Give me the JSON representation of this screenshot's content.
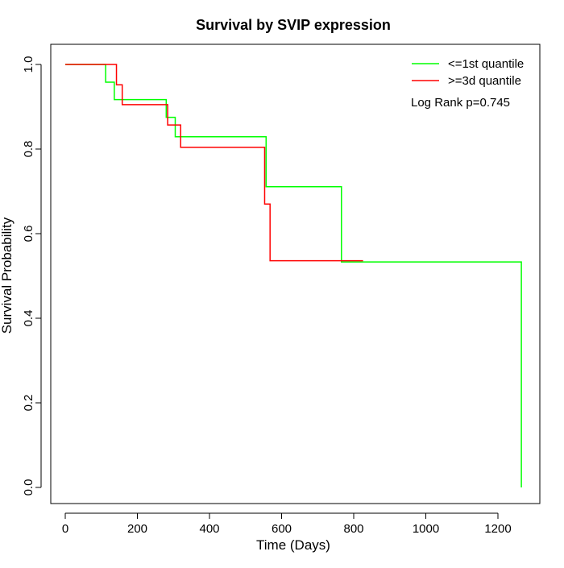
{
  "chart_data": {
    "type": "line",
    "step": true,
    "title": "Survival by SVIP expression",
    "xlabel": "Time (Days)",
    "ylabel": "Survival Probability",
    "xlim": [
      0,
      1265
    ],
    "ylim": [
      0,
      1
    ],
    "xticks": [
      0,
      200,
      400,
      600,
      800,
      1000,
      1200
    ],
    "yticks": [
      0.0,
      0.2,
      0.4,
      0.6,
      0.8,
      1.0
    ],
    "ytick_labels": [
      "0.0",
      "0.2",
      "0.4",
      "0.6",
      "0.8",
      "1.0"
    ],
    "grid": false,
    "legend_position": "top-right",
    "annotation": "Log Rank p=0.745",
    "series": [
      {
        "name": "<=1st quantile",
        "color": "#00ff00",
        "x": [
          0,
          112,
          136,
          280,
          305,
          557,
          766,
          1265
        ],
        "y": [
          1.0,
          0.958,
          0.917,
          0.875,
          0.829,
          0.711,
          0.533,
          0.0
        ]
      },
      {
        "name": ">=3d quantile",
        "color": "#ff0000",
        "x": [
          0,
          142,
          158,
          284,
          320,
          553,
          568,
          826
        ],
        "y": [
          1.0,
          0.952,
          0.905,
          0.857,
          0.804,
          0.67,
          0.536,
          0.536
        ]
      }
    ]
  }
}
